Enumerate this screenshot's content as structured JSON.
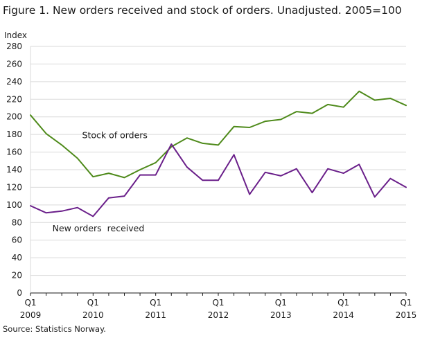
{
  "title": "Figure 1. New orders received and stock of orders. Unadjusted. 2005=100",
  "source": "Source: Statistics Norway.",
  "chart_data": {
    "type": "line",
    "ylabel": "Index",
    "xlabel": "",
    "ylim": [
      0,
      280
    ],
    "yticks": [
      0,
      20,
      40,
      60,
      80,
      100,
      120,
      140,
      160,
      180,
      200,
      220,
      240,
      260,
      280
    ],
    "grid": "horizontal",
    "legend": "inline labels",
    "x": [
      "2009Q1",
      "2009Q2",
      "2009Q3",
      "2009Q4",
      "2010Q1",
      "2010Q2",
      "2010Q3",
      "2010Q4",
      "2011Q1",
      "2011Q2",
      "2011Q3",
      "2011Q4",
      "2012Q1",
      "2012Q2",
      "2012Q3",
      "2012Q4",
      "2013Q1",
      "2013Q2",
      "2013Q3",
      "2013Q4",
      "2014Q1",
      "2014Q2",
      "2014Q3",
      "2014Q4",
      "2015Q1"
    ],
    "xtick_labels": [
      {
        "index": 0,
        "quarter": "Q1",
        "year": "2009"
      },
      {
        "index": 4,
        "quarter": "Q1",
        "year": "2010"
      },
      {
        "index": 8,
        "quarter": "Q1",
        "year": "2011"
      },
      {
        "index": 12,
        "quarter": "Q1",
        "year": "2012"
      },
      {
        "index": 16,
        "quarter": "Q1",
        "year": "2013"
      },
      {
        "index": 20,
        "quarter": "Q1",
        "year": "2014"
      },
      {
        "index": 24,
        "quarter": "Q1",
        "year": "2015"
      }
    ],
    "series": [
      {
        "name": "Stock of orders",
        "color": "#4e8a1a",
        "label_anchor": {
          "x_index": 3.3,
          "y_value": 179
        },
        "values": [
          202,
          181,
          168,
          153,
          132,
          136,
          131,
          140,
          148,
          166,
          176,
          170,
          168,
          189,
          188,
          195,
          197,
          206,
          204,
          214,
          211,
          229,
          219,
          221,
          213
        ]
      },
      {
        "name": "New orders  received",
        "color": "#6a1f8a",
        "label_anchor": {
          "x_index": 1.4,
          "y_value": 73
        },
        "values": [
          99,
          91,
          93,
          97,
          87,
          108,
          110,
          134,
          134,
          169,
          143,
          128,
          128,
          157,
          112,
          137,
          133,
          141,
          114,
          141,
          136,
          146,
          109,
          130,
          120
        ]
      }
    ]
  }
}
